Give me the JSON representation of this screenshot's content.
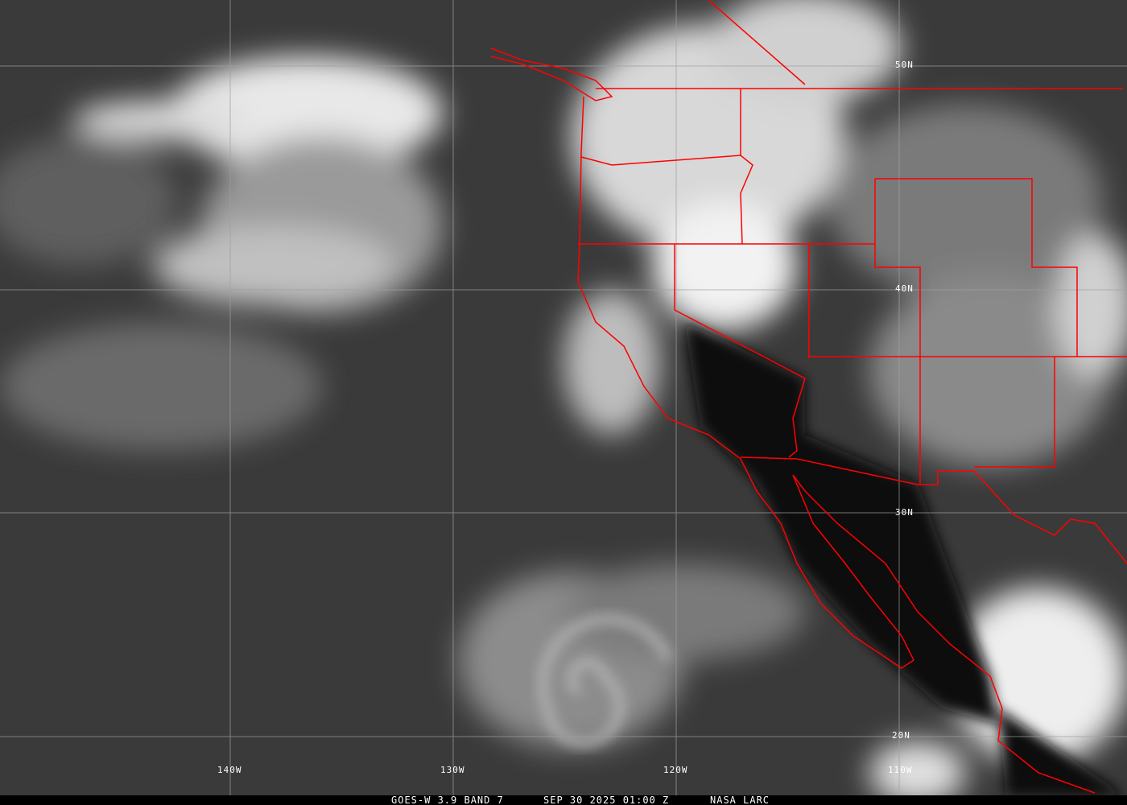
{
  "footer": {
    "product": "GOES-W 3.9 BAND 7",
    "datetime": "SEP 30 2025 01:00 Z",
    "source": "NASA LARC"
  },
  "grid": {
    "longitude_labels": [
      "140W",
      "130W",
      "120W",
      "110W"
    ],
    "latitude_labels": [
      "50N",
      "40N",
      "30N",
      "20N"
    ]
  },
  "colors": {
    "boundaries": "#ff0000",
    "grid": "#a0a0a0",
    "ocean": "#3a3a3a",
    "clouds": "#f0f0f0"
  }
}
